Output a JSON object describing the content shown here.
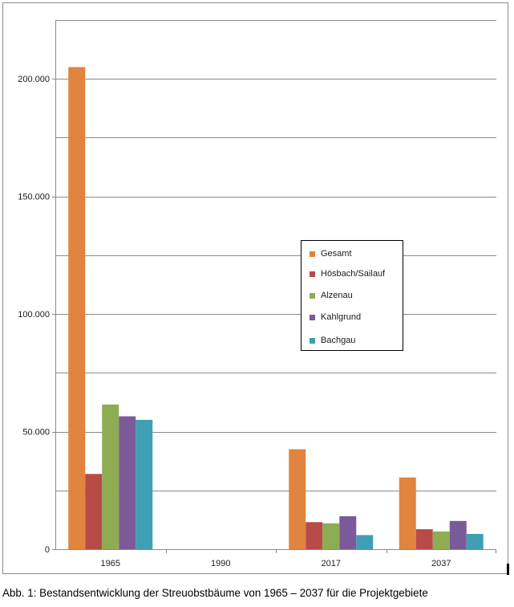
{
  "chart_data": {
    "type": "bar",
    "title": "",
    "xlabel": "",
    "ylabel": "",
    "categories": [
      "1965",
      "1990",
      "2017",
      "2037"
    ],
    "ylim": [
      0,
      225000
    ],
    "yticks": [
      0,
      50000,
      100000,
      150000,
      200000
    ],
    "ytick_labels": [
      "0",
      "50.000",
      "100.000",
      "150.000",
      "200.000"
    ],
    "grid": true,
    "legend_position": "center-right",
    "series": [
      {
        "name": "Gesamt",
        "color": "#e0843f",
        "values": [
          205000,
          0,
          42500,
          30500
        ]
      },
      {
        "name": "Hösbach/Sailauf",
        "color": "#b84a48",
        "values": [
          32000,
          0,
          11500,
          8500
        ]
      },
      {
        "name": "Alzenau",
        "color": "#8eac52",
        "values": [
          61500,
          0,
          11000,
          7500
        ]
      },
      {
        "name": "Kahlgrund",
        "color": "#7a5a99",
        "values": [
          56500,
          0,
          14000,
          12000
        ]
      },
      {
        "name": "Bachgau",
        "color": "#3f9fb5",
        "values": [
          55000,
          0,
          6000,
          6500
        ]
      }
    ]
  },
  "caption": "Abb. 1: Bestandsentwicklung der Streuobstbäume von 1965 – 2037 für die Projektgebiete"
}
